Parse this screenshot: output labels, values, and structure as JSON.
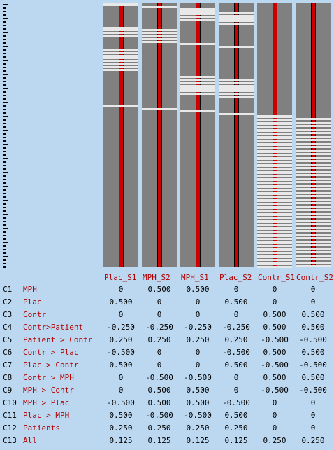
{
  "columns": [
    "Plac_S1",
    "MPH_S2",
    "MPH_S1",
    "Plac_S2",
    "Contr_S1",
    "Contr_S2"
  ],
  "contrasts": [
    {
      "id": "C1",
      "name": "MPH",
      "values": [
        "0",
        "0.500",
        "0.500",
        "0",
        "0",
        "0"
      ]
    },
    {
      "id": "C2",
      "name": "Plac",
      "values": [
        "0.500",
        "0",
        "0",
        "0.500",
        "0",
        "0"
      ]
    },
    {
      "id": "C3",
      "name": "Contr",
      "values": [
        "0",
        "0",
        "0",
        "0",
        "0.500",
        "0.500"
      ]
    },
    {
      "id": "C4",
      "name": "Contr>Patient",
      "values": [
        "-0.250",
        "-0.250",
        "-0.250",
        "-0.250",
        "0.500",
        "0.500"
      ]
    },
    {
      "id": "C5",
      "name": "Patient > Contr",
      "values": [
        "0.250",
        "0.250",
        "0.250",
        "0.250",
        "-0.500",
        "-0.500"
      ]
    },
    {
      "id": "C6",
      "name": "Contr > Plac",
      "values": [
        "-0.500",
        "0",
        "0",
        "-0.500",
        "0.500",
        "0.500"
      ]
    },
    {
      "id": "C7",
      "name": "Plac > Contr",
      "values": [
        "0.500",
        "0",
        "0",
        "0.500",
        "-0.500",
        "-0.500"
      ]
    },
    {
      "id": "C8",
      "name": "Contr > MPH",
      "values": [
        "0",
        "-0.500",
        "-0.500",
        "0",
        "0.500",
        "0.500"
      ]
    },
    {
      "id": "C9",
      "name": "MPH > Contr",
      "values": [
        "0",
        "0.500",
        "0.500",
        "0",
        "-0.500",
        "-0.500"
      ]
    },
    {
      "id": "C10",
      "name": "MPH > Plac",
      "values": [
        "-0.500",
        "0.500",
        "0.500",
        "-0.500",
        "0",
        "0"
      ]
    },
    {
      "id": "C11",
      "name": "Plac > MPH",
      "values": [
        "0.500",
        "-0.500",
        "-0.500",
        "0.500",
        "0",
        "0"
      ]
    },
    {
      "id": "C12",
      "name": "Patients",
      "values": [
        "0.250",
        "0.250",
        "0.250",
        "0.250",
        "0",
        "0"
      ]
    },
    {
      "id": "C13",
      "name": "All",
      "values": [
        "0.125",
        "0.125",
        "0.125",
        "0.125",
        "0.250",
        "0.250"
      ]
    }
  ],
  "colors": {
    "background": "#bcd8f0",
    "matrix": "#808080",
    "regressor": "#cc0000",
    "label": "#b00000"
  }
}
